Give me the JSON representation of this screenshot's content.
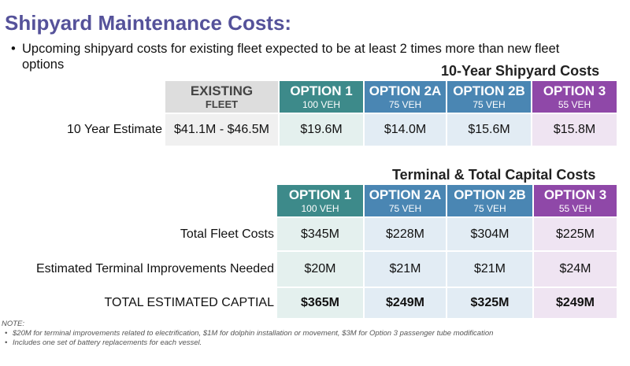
{
  "page": {
    "title": "Shipyard Maintenance Costs:",
    "bullet": "Upcoming shipyard costs for existing fleet expected to be at least 2 times more than new fleet options"
  },
  "colors": {
    "title": "#55529a",
    "option1": "#3d8a8a",
    "option2": "#4a86b3",
    "option3": "#8f48a8",
    "existing_header": "#dddddd",
    "existing_cell": "#f0f0f0",
    "option1_cell": "#e4f0ee",
    "option2_cell": "#e2ecf4",
    "option3_cell": "#efe4f2"
  },
  "shipyard_table": {
    "title": "10-Year Shipyard Costs",
    "headers": [
      {
        "main": "EXISTING",
        "sub": "FLEET"
      },
      {
        "main": "OPTION 1",
        "sub": "100 VEH"
      },
      {
        "main": "OPTION 2A",
        "sub": "75 VEH"
      },
      {
        "main": "OPTION 2B",
        "sub": "75 VEH"
      },
      {
        "main": "OPTION 3",
        "sub": "55 VEH"
      }
    ],
    "row": {
      "label": "10 Year Estimate",
      "values": [
        "$41.1M - $46.5M",
        "$19.6M",
        "$14.0M",
        "$15.6M",
        "$15.8M"
      ]
    }
  },
  "terminal_table": {
    "title": "Terminal & Total Capital Costs",
    "headers": [
      {
        "main": "OPTION 1",
        "sub": "100 VEH"
      },
      {
        "main": "OPTION 2A",
        "sub": "75 VEH"
      },
      {
        "main": "OPTION 2B",
        "sub": "75 VEH"
      },
      {
        "main": "OPTION 3",
        "sub": "55 VEH"
      }
    ],
    "rows": [
      {
        "label": "Total Fleet Costs",
        "values": [
          "$345M",
          "$228M",
          "$304M",
          "$225M"
        ]
      },
      {
        "label": "Estimated Terminal Improvements Needed",
        "values": [
          "$20M",
          "$21M",
          "$21M",
          "$24M"
        ]
      },
      {
        "label": "TOTAL ESTIMATED CAPTIAL",
        "values": [
          "$365M",
          "$249M",
          "$325M",
          "$249M"
        ]
      }
    ]
  },
  "notes": {
    "label": "NOTE:",
    "items": [
      "$20M for terminal improvements related to electrification, $1M for dolphin installation or movement, $3M for Option 3 passenger tube modification",
      "Includes one set of battery replacements for each vessel."
    ]
  }
}
